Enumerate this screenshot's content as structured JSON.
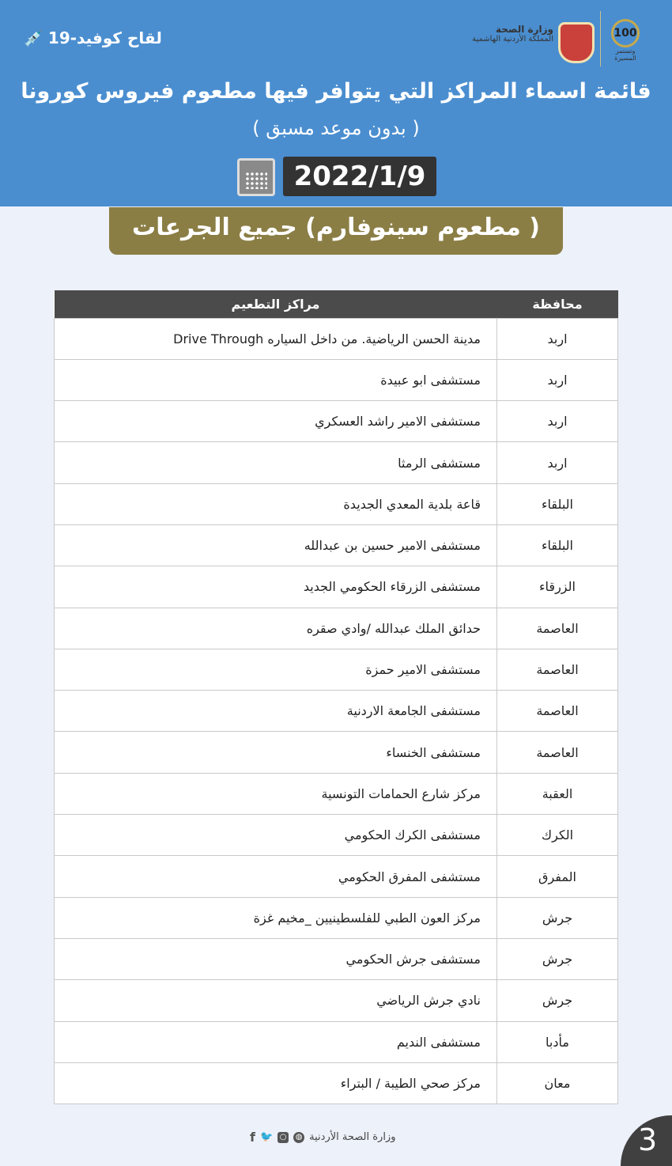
{
  "header": {
    "vaccine_label": "لقاح كوفيد-19",
    "ministry": "وزارة الصحة",
    "kingdom": "المملكة الأردنية الهاشمية",
    "centennial": "100",
    "centennial_slogan": "وتستمر المسيرة",
    "title": "قائمة اسماء المراكز التي يتوافر فيها مطعوم فيروس كورونا",
    "subtitle": "( بدون موعد مسبق )",
    "date": "2022/1/9",
    "vaccine_type": "( مطعوم سينوفارم)  جميع الجرعات"
  },
  "colors": {
    "header_bg": "#4a8ed0",
    "banner": "#8b7e45",
    "table_header": "#4b4b4b"
  },
  "table": {
    "headers": [
      "محافظة",
      "مراكز التطعيم"
    ],
    "rows": [
      [
        "اربد",
        "مدينة الحسن الرياضية. من داخل السياره Drive Through"
      ],
      [
        "اربد",
        "مستشفى ابو عبيدة"
      ],
      [
        "اربد",
        "مستشفى الامير راشد العسكري"
      ],
      [
        "اربد",
        "مستشفى الرمثا"
      ],
      [
        "البلقاء",
        "قاعة بلدية المعدي الجديدة"
      ],
      [
        "البلقاء",
        "مستشفى الامير حسين بن عبدالله"
      ],
      [
        "الزرقاء",
        "مستشفى الزرقاء الحكومي الجديد"
      ],
      [
        "العاصمة",
        "حدائق الملك عبدالله /وادي صقره"
      ],
      [
        "العاصمة",
        "مستشفى الامير حمزة"
      ],
      [
        "العاصمة",
        "مستشفى الجامعة الاردنية"
      ],
      [
        "العاصمة",
        "مستشفى الخنساء"
      ],
      [
        "العقبة",
        "مركز شارع الحمامات التونسية"
      ],
      [
        "الكرك",
        "مستشفى الكرك الحكومي"
      ],
      [
        "المفرق",
        "مستشفى المفرق الحكومي"
      ],
      [
        "جرش",
        "مركز العون الطبي للفلسطينيين _مخيم غزة"
      ],
      [
        "جرش",
        "مستشفى جرش الحكومي"
      ],
      [
        "جرش",
        "نادي جرش الرياضي"
      ],
      [
        "مأدبا",
        "مستشفى النديم"
      ],
      [
        "معان",
        "مركز صحي الطيبة / البتراء"
      ]
    ]
  },
  "footer": {
    "ministry": "وزارة الصحة الأردنية",
    "page": "3",
    "icons": [
      "globe-icon",
      "instagram-icon",
      "twitter-icon",
      "facebook-icon"
    ]
  }
}
